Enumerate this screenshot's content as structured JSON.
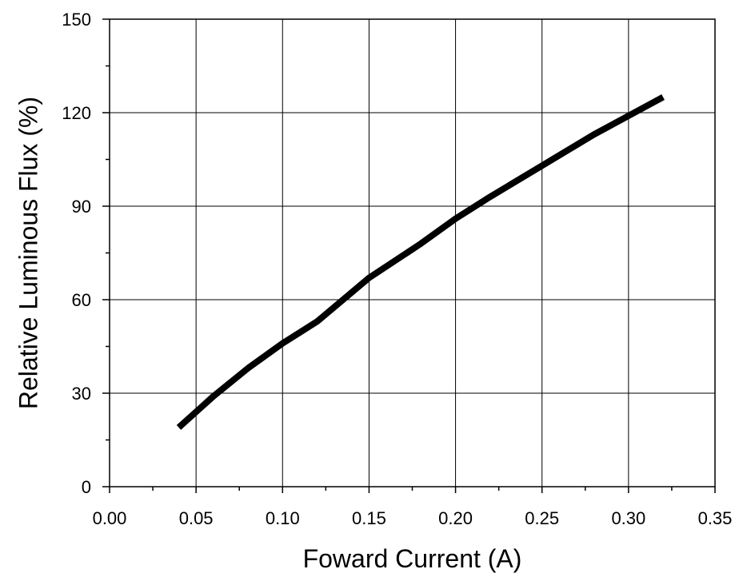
{
  "chart_data": {
    "type": "line",
    "title": "",
    "xlabel": "Foward Current (A)",
    "ylabel": "Relative Luminous Flux (%)",
    "xlim": [
      0.0,
      0.35
    ],
    "ylim": [
      0,
      150
    ],
    "x_ticks": [
      "0.00",
      "0.05",
      "0.10",
      "0.15",
      "0.20",
      "0.25",
      "0.30",
      "0.35"
    ],
    "y_ticks": [
      "0",
      "30",
      "60",
      "90",
      "120",
      "150"
    ],
    "x_tick_values": [
      0.0,
      0.05,
      0.1,
      0.15,
      0.2,
      0.25,
      0.3,
      0.35
    ],
    "y_tick_values": [
      0,
      30,
      60,
      90,
      120,
      150
    ],
    "grid": true,
    "series": [
      {
        "color": "#000000",
        "x": [
          0.04,
          0.06,
          0.08,
          0.1,
          0.12,
          0.15,
          0.18,
          0.2,
          0.22,
          0.25,
          0.28,
          0.3,
          0.32
        ],
        "y": [
          19,
          29,
          38,
          46,
          53,
          67,
          78,
          86,
          93,
          103,
          113,
          119,
          125
        ]
      }
    ]
  }
}
